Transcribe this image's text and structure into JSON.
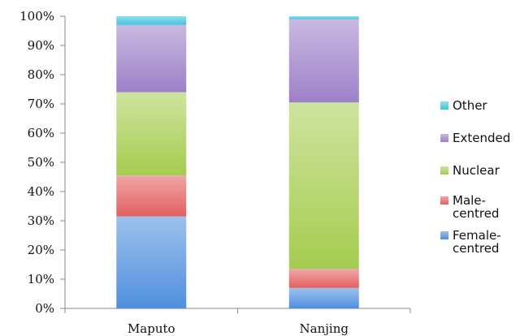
{
  "chart_data": {
    "type": "bar",
    "stacked": true,
    "percent": true,
    "categories": [
      "Maputo",
      "Nanjing"
    ],
    "ylim": [
      0,
      100
    ],
    "yticks": [
      "0%",
      "10%",
      "20%",
      "30%",
      "40%",
      "50%",
      "60%",
      "70%",
      "80%",
      "90%",
      "100%"
    ],
    "grid": false,
    "legend_position": "right",
    "series": [
      {
        "name": "Female-centred",
        "legend_lines": [
          "Female-",
          "centred"
        ],
        "color": "#4f8fde",
        "values": [
          31.5,
          7
        ]
      },
      {
        "name": "Male-centred",
        "legend_lines": [
          "Male-",
          "centred"
        ],
        "color": "#e25f5f",
        "values": [
          14,
          6.5
        ]
      },
      {
        "name": "Nuclear",
        "legend_lines": [
          "Nuclear"
        ],
        "color": "#a5cc50",
        "values": [
          28.5,
          57
        ]
      },
      {
        "name": "Extended",
        "legend_lines": [
          "Extended"
        ],
        "color": "#9d80c8",
        "values": [
          23,
          28.5
        ]
      },
      {
        "name": "Other",
        "legend_lines": [
          "Other"
        ],
        "color": "#3fc4dd",
        "values": [
          3,
          1
        ]
      }
    ]
  }
}
